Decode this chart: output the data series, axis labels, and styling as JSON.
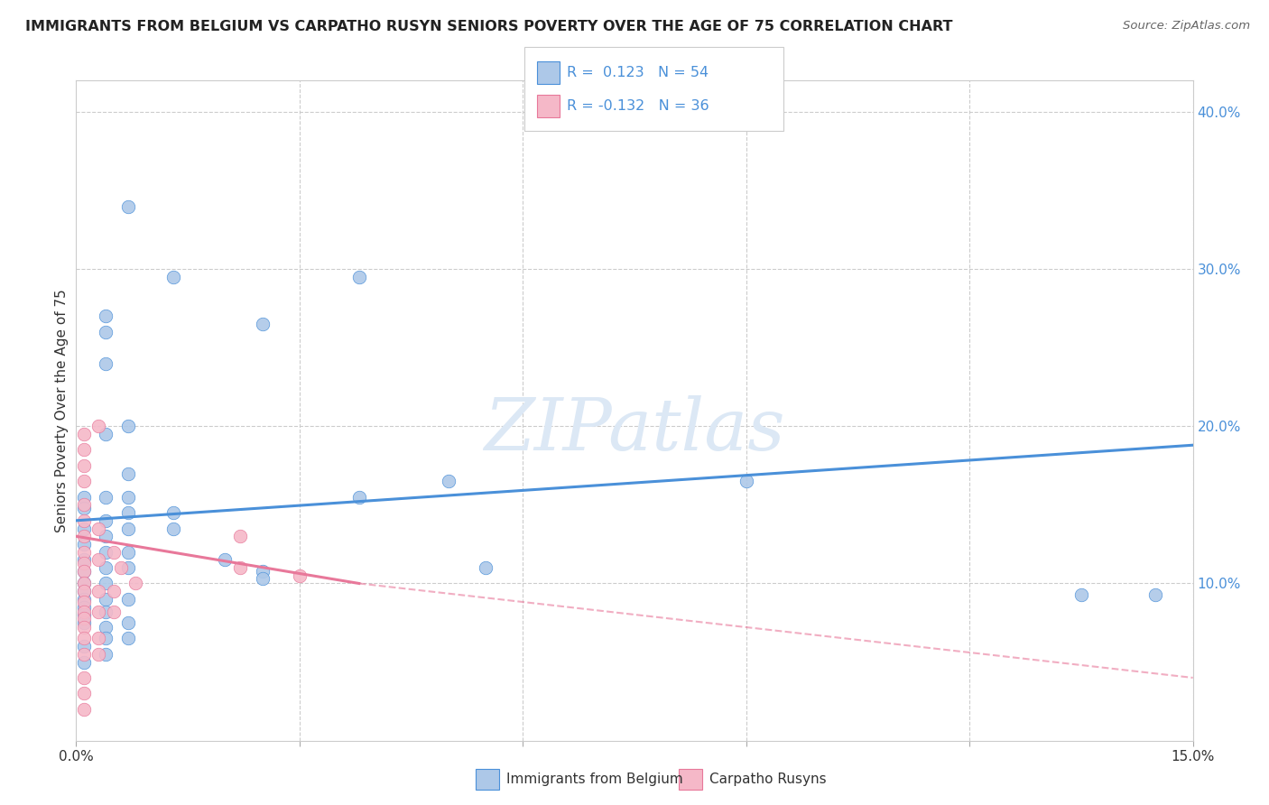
{
  "title": "IMMIGRANTS FROM BELGIUM VS CARPATHO RUSYN SENIORS POVERTY OVER THE AGE OF 75 CORRELATION CHART",
  "source": "Source: ZipAtlas.com",
  "ylabel": "Seniors Poverty Over the Age of 75",
  "xmin": 0.0,
  "xmax": 0.15,
  "ymin": 0.0,
  "ymax": 0.42,
  "xticks": [
    0.0,
    0.03,
    0.06,
    0.09,
    0.12,
    0.15
  ],
  "xticklabels": [
    "0.0%",
    "",
    "",
    "",
    "",
    "15.0%"
  ],
  "yticks_right": [
    0.1,
    0.2,
    0.3,
    0.4
  ],
  "ytick_labels_right": [
    "10.0%",
    "20.0%",
    "30.0%",
    "40.0%"
  ],
  "legend_color1": "#adc8e8",
  "legend_color2": "#f5b8c8",
  "blue_color": "#4a90d9",
  "pink_color": "#e8789a",
  "text_color": "#4a90d9",
  "watermark": "ZIPatlas",
  "watermark_color": "#dce8f5",
  "legend_r1": " 0.123",
  "legend_n1": "54",
  "legend_r2": "-0.132",
  "legend_n2": "36",
  "blue_scatter": [
    [
      0.001,
      0.155
    ],
    [
      0.001,
      0.148
    ],
    [
      0.001,
      0.135
    ],
    [
      0.001,
      0.125
    ],
    [
      0.001,
      0.115
    ],
    [
      0.001,
      0.108
    ],
    [
      0.001,
      0.1
    ],
    [
      0.001,
      0.095
    ],
    [
      0.001,
      0.09
    ],
    [
      0.001,
      0.085
    ],
    [
      0.001,
      0.08
    ],
    [
      0.001,
      0.075
    ],
    [
      0.001,
      0.06
    ],
    [
      0.001,
      0.05
    ],
    [
      0.004,
      0.27
    ],
    [
      0.004,
      0.26
    ],
    [
      0.004,
      0.24
    ],
    [
      0.004,
      0.195
    ],
    [
      0.004,
      0.155
    ],
    [
      0.004,
      0.14
    ],
    [
      0.004,
      0.13
    ],
    [
      0.004,
      0.12
    ],
    [
      0.004,
      0.11
    ],
    [
      0.004,
      0.1
    ],
    [
      0.004,
      0.09
    ],
    [
      0.004,
      0.082
    ],
    [
      0.004,
      0.072
    ],
    [
      0.004,
      0.065
    ],
    [
      0.004,
      0.055
    ],
    [
      0.007,
      0.34
    ],
    [
      0.007,
      0.2
    ],
    [
      0.007,
      0.17
    ],
    [
      0.007,
      0.155
    ],
    [
      0.007,
      0.145
    ],
    [
      0.007,
      0.135
    ],
    [
      0.007,
      0.12
    ],
    [
      0.007,
      0.11
    ],
    [
      0.007,
      0.09
    ],
    [
      0.007,
      0.075
    ],
    [
      0.007,
      0.065
    ],
    [
      0.013,
      0.295
    ],
    [
      0.013,
      0.145
    ],
    [
      0.013,
      0.135
    ],
    [
      0.02,
      0.115
    ],
    [
      0.025,
      0.265
    ],
    [
      0.025,
      0.108
    ],
    [
      0.025,
      0.103
    ],
    [
      0.038,
      0.295
    ],
    [
      0.038,
      0.155
    ],
    [
      0.05,
      0.165
    ],
    [
      0.055,
      0.11
    ],
    [
      0.09,
      0.165
    ],
    [
      0.135,
      0.093
    ],
    [
      0.145,
      0.093
    ]
  ],
  "pink_scatter": [
    [
      0.001,
      0.195
    ],
    [
      0.001,
      0.185
    ],
    [
      0.001,
      0.175
    ],
    [
      0.001,
      0.165
    ],
    [
      0.001,
      0.15
    ],
    [
      0.001,
      0.14
    ],
    [
      0.001,
      0.13
    ],
    [
      0.001,
      0.12
    ],
    [
      0.001,
      0.113
    ],
    [
      0.001,
      0.108
    ],
    [
      0.001,
      0.1
    ],
    [
      0.001,
      0.095
    ],
    [
      0.001,
      0.088
    ],
    [
      0.001,
      0.082
    ],
    [
      0.001,
      0.078
    ],
    [
      0.001,
      0.072
    ],
    [
      0.001,
      0.065
    ],
    [
      0.001,
      0.055
    ],
    [
      0.001,
      0.04
    ],
    [
      0.001,
      0.03
    ],
    [
      0.001,
      0.02
    ],
    [
      0.003,
      0.2
    ],
    [
      0.003,
      0.135
    ],
    [
      0.003,
      0.115
    ],
    [
      0.003,
      0.095
    ],
    [
      0.003,
      0.082
    ],
    [
      0.003,
      0.065
    ],
    [
      0.003,
      0.055
    ],
    [
      0.005,
      0.12
    ],
    [
      0.005,
      0.095
    ],
    [
      0.005,
      0.082
    ],
    [
      0.006,
      0.11
    ],
    [
      0.008,
      0.1
    ],
    [
      0.022,
      0.13
    ],
    [
      0.022,
      0.11
    ],
    [
      0.03,
      0.105
    ]
  ],
  "blue_line": [
    [
      0.0,
      0.14
    ],
    [
      0.15,
      0.188
    ]
  ],
  "pink_line_solid": [
    [
      0.0,
      0.13
    ],
    [
      0.038,
      0.1
    ]
  ],
  "pink_line_dashed": [
    [
      0.038,
      0.1
    ],
    [
      0.15,
      0.04
    ]
  ],
  "bottom_labels": [
    "Immigrants from Belgium",
    "Carpatho Rusyns"
  ],
  "bottom_colors": [
    "#adc8e8",
    "#f5b8c8"
  ],
  "bottom_edge_colors": [
    "#4a90d9",
    "#e8789a"
  ]
}
